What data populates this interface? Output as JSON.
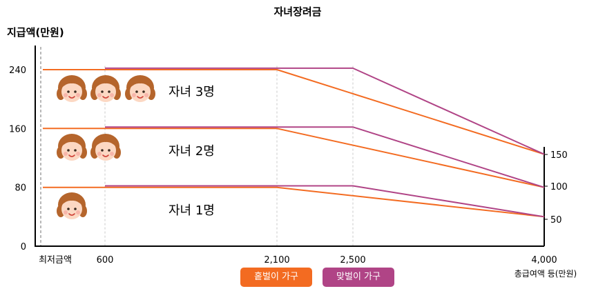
{
  "chart_data": {
    "type": "line",
    "title": "자녀장려금",
    "ylabel": "지급액(만원)",
    "xlabel": "총급여액 등(만원)",
    "min_wage_label": "최저금액",
    "x_ticks": [
      {
        "value": 600,
        "label": "600"
      },
      {
        "value": 2100,
        "label": "2,100"
      },
      {
        "value": 2500,
        "label": "2,500"
      },
      {
        "value": 4000,
        "label": "4,000"
      }
    ],
    "y_ticks": [
      {
        "value": 0,
        "label": "0"
      },
      {
        "value": 80,
        "label": "80"
      },
      {
        "value": 160,
        "label": "160"
      },
      {
        "value": 240,
        "label": "240"
      }
    ],
    "right_ticks": [
      {
        "value": 150,
        "label": "150"
      },
      {
        "value": 100,
        "label": "100"
      },
      {
        "value": 50,
        "label": "50"
      }
    ],
    "ylim": [
      0,
      270
    ],
    "series": [
      {
        "name": "자녀 1명 홑벌이",
        "household": "single",
        "points": [
          [
            0,
            80
          ],
          [
            2100,
            80
          ],
          [
            4000,
            40
          ]
        ]
      },
      {
        "name": "자녀 1명 맞벌이",
        "household": "dual",
        "points": [
          [
            600,
            82
          ],
          [
            2500,
            82
          ],
          [
            4000,
            40
          ]
        ]
      },
      {
        "name": "자녀 2명 홑벌이",
        "household": "single",
        "points": [
          [
            0,
            160
          ],
          [
            2100,
            160
          ],
          [
            4000,
            80
          ]
        ]
      },
      {
        "name": "자녀 2명 맞벌이",
        "household": "dual",
        "points": [
          [
            600,
            162
          ],
          [
            2500,
            162
          ],
          [
            4000,
            80
          ]
        ]
      },
      {
        "name": "자녀 3명 홑벌이",
        "household": "single",
        "points": [
          [
            0,
            240
          ],
          [
            2100,
            240
          ],
          [
            4000,
            125
          ]
        ]
      },
      {
        "name": "자녀 3명 맞벌이",
        "household": "dual",
        "points": [
          [
            600,
            242
          ],
          [
            2500,
            242
          ],
          [
            4000,
            125
          ]
        ]
      }
    ],
    "child_groups": [
      {
        "label": "자녀 3명",
        "count": 3
      },
      {
        "label": "자녀 2명",
        "count": 2
      },
      {
        "label": "자녀 1명",
        "count": 1
      }
    ],
    "legend": [
      {
        "label": "홑벌이 가구",
        "color": "#f36b21"
      },
      {
        "label": "맞벌이 가구",
        "color": "#b04486"
      }
    ]
  },
  "colors": {
    "single": "#f36b21",
    "dual": "#b04486",
    "face_skin": "#fcd8c3",
    "hair": "#b5652c"
  }
}
